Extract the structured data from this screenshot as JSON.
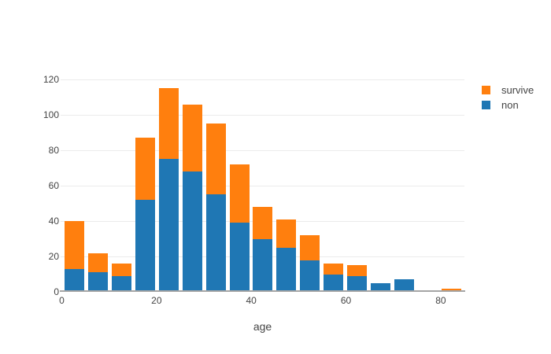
{
  "figure": {
    "background_color": "#ffffff",
    "text_color": "#444444",
    "grid_color": "#ebebeb",
    "axis_line_color": "#a5a5a5"
  },
  "legend": {
    "items": [
      {
        "label": "survive",
        "color": "#ff7f0e"
      },
      {
        "label": "non",
        "color": "#1f77b4"
      }
    ]
  },
  "chart_data": {
    "type": "bar",
    "stacked": true,
    "title": "",
    "xlabel": "age",
    "ylabel": "",
    "bin_size": 5,
    "categories": [
      "0-5",
      "5-10",
      "10-15",
      "15-20",
      "20-25",
      "25-30",
      "30-35",
      "35-40",
      "40-45",
      "45-50",
      "50-55",
      "55-60",
      "60-65",
      "65-70",
      "70-75",
      "75-80",
      "80-85"
    ],
    "series": [
      {
        "name": "non",
        "color": "#1f77b4",
        "values": [
          13,
          11,
          9,
          52,
          75,
          68,
          55,
          39,
          30,
          25,
          18,
          10,
          9,
          5,
          7,
          0,
          0
        ]
      },
      {
        "name": "survive",
        "color": "#ff7f0e",
        "values": [
          27,
          11,
          7,
          35,
          40,
          38,
          40,
          33,
          18,
          16,
          14,
          6,
          6,
          0,
          0,
          0,
          2
        ]
      }
    ],
    "totals": [
      40,
      22,
      16,
      87,
      115,
      106,
      95,
      72,
      48,
      41,
      32,
      16,
      15,
      5,
      7,
      0,
      2
    ],
    "x_ticks": [
      0,
      20,
      40,
      60,
      80
    ],
    "y_ticks": [
      0,
      20,
      40,
      60,
      80,
      100,
      120
    ],
    "xlim": [
      0,
      85
    ],
    "ylim": [
      0,
      121
    ],
    "grid": true,
    "legend_position": "top-right"
  }
}
